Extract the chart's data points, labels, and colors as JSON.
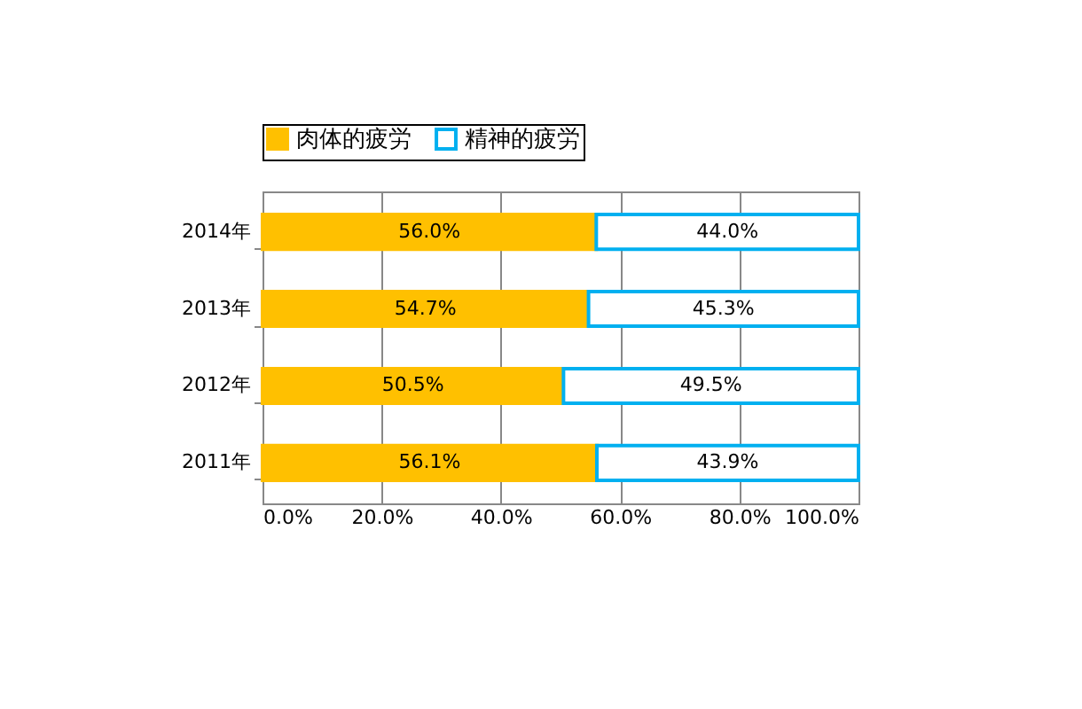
{
  "chart_data": {
    "type": "bar",
    "orientation": "horizontal",
    "stacked": true,
    "categories": [
      "2014年",
      "2013年",
      "2012年",
      "2011年"
    ],
    "series": [
      {
        "name": "肉体的疲労",
        "color": "#ffc000",
        "values": [
          56.0,
          54.7,
          50.5,
          56.1
        ],
        "value_labels": [
          "56.0%",
          "54.7%",
          "50.5%",
          "56.1%"
        ]
      },
      {
        "name": "精神的疲労",
        "color": "#00b0f0",
        "values": [
          44.0,
          45.3,
          49.5,
          43.9
        ],
        "value_labels": [
          "44.0%",
          "45.3%",
          "49.5%",
          "43.9%"
        ]
      }
    ],
    "xlim": [
      0,
      100
    ],
    "xticks": [
      {
        "value": 0,
        "label": "0.0%"
      },
      {
        "value": 20,
        "label": "20.0%"
      },
      {
        "value": 40,
        "label": "40.0%"
      },
      {
        "value": 60,
        "label": "60.0%"
      },
      {
        "value": 80,
        "label": "80.0%"
      },
      {
        "value": 100,
        "label": "100.0%"
      }
    ],
    "grid": "x",
    "legend": "top"
  }
}
